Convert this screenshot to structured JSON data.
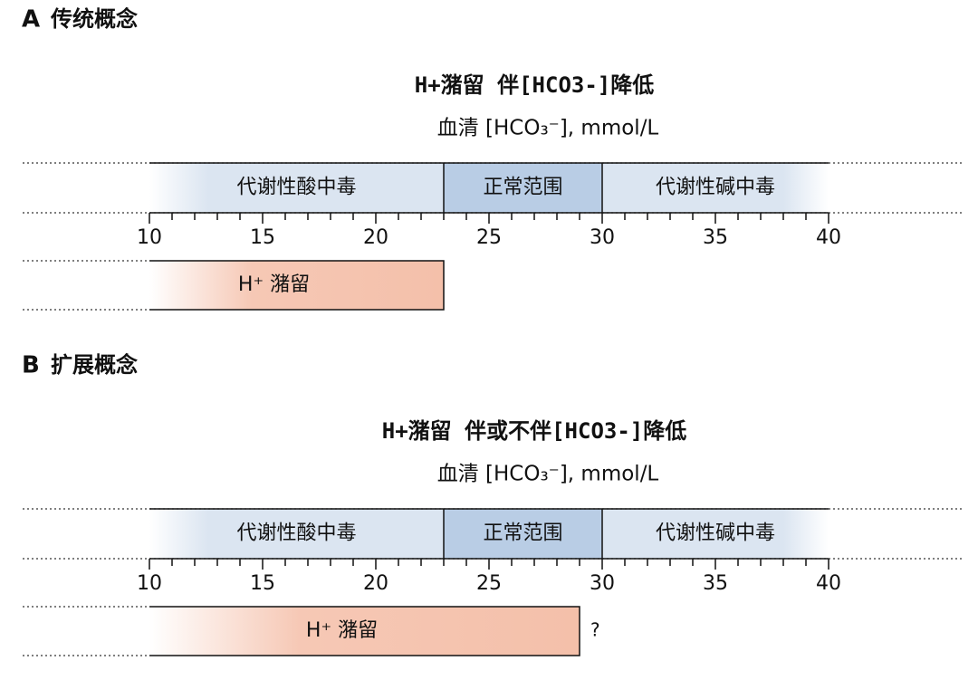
{
  "panels": [
    {
      "label": "A",
      "heading": "传统概念",
      "title": "H+潴留 伴[HCO3-]降低",
      "axis_label": "血清 [HCO₃⁻], mmol/L",
      "xlim": [
        10,
        40
      ],
      "xticks": [
        10,
        15,
        20,
        25,
        30,
        35,
        40
      ],
      "minor_ticks": [
        11,
        12,
        13,
        14,
        16,
        17,
        18,
        19,
        21,
        22,
        23,
        24,
        26,
        27,
        28,
        29,
        31,
        32,
        33,
        34,
        36,
        37,
        38,
        39
      ],
      "regions": [
        {
          "label": "代谢性酸中毒",
          "range": [
            10,
            23
          ]
        },
        {
          "label": "正常范围",
          "range": [
            23,
            30
          ]
        },
        {
          "label": "代谢性碱中毒",
          "range": [
            30,
            40
          ]
        }
      ],
      "bar": {
        "label": "H⁺ 潴留",
        "range": [
          10,
          23
        ]
      }
    },
    {
      "label": "B",
      "heading": "扩展概念",
      "title": "H+潴留 伴或不伴[HCO3-]降低",
      "axis_label": "血清 [HCO₃⁻], mmol/L",
      "xlim": [
        10,
        40
      ],
      "xticks": [
        10,
        15,
        20,
        25,
        30,
        35,
        40
      ],
      "minor_ticks": [
        11,
        12,
        13,
        14,
        16,
        17,
        18,
        19,
        21,
        22,
        23,
        24,
        26,
        27,
        28,
        29,
        31,
        32,
        33,
        34,
        36,
        37,
        38,
        39
      ],
      "regions": [
        {
          "label": "代谢性酸中毒",
          "range": [
            10,
            23
          ]
        },
        {
          "label": "正常范围",
          "range": [
            23,
            30
          ]
        },
        {
          "label": "代谢性碱中毒",
          "range": [
            30,
            40
          ]
        }
      ],
      "bar": {
        "label": "H⁺ 潴留",
        "range": [
          10,
          29
        ],
        "note": "?"
      }
    }
  ]
}
